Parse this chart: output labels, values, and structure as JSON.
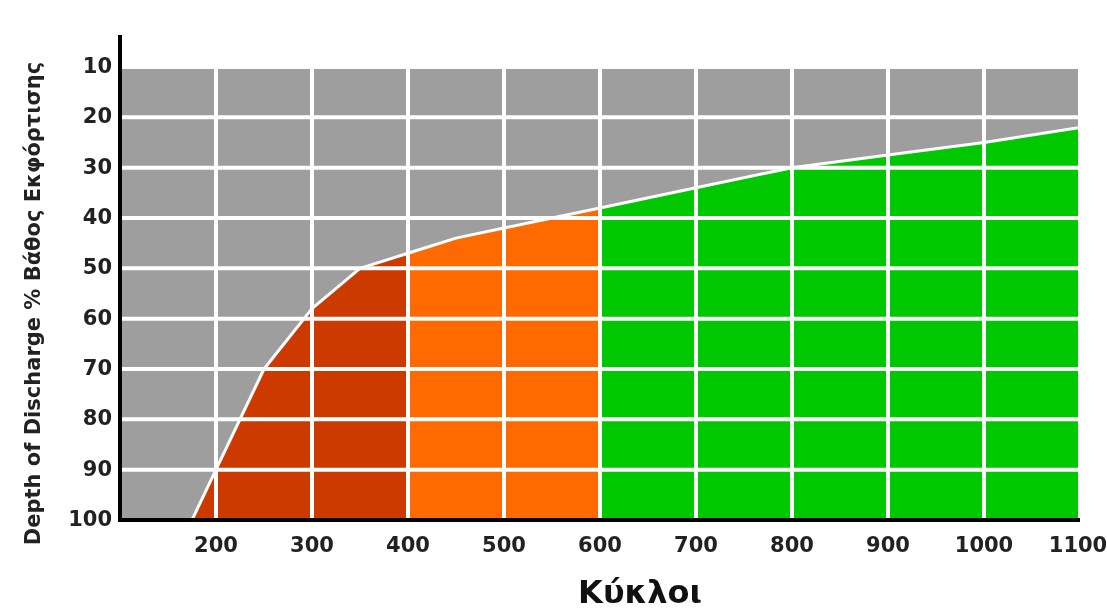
{
  "chart_data": {
    "type": "area",
    "xlabel": "Κύκλοι",
    "ylabel": "Depth of Discharge %  Βάθος Εκφόρτισης",
    "xlim": [
      100,
      1100
    ],
    "xticks": [
      200,
      300,
      400,
      500,
      600,
      700,
      800,
      900,
      1000,
      1100
    ],
    "ylim": [
      100,
      10
    ],
    "yticks": [
      10,
      20,
      30,
      40,
      50,
      60,
      70,
      80,
      90,
      100
    ],
    "grid": true,
    "bands": [
      {
        "axis": "x",
        "from": 175,
        "to": 400,
        "color": "#cc3a00"
      },
      {
        "axis": "x",
        "from": 400,
        "to": 600,
        "color": "#ff6a00"
      },
      {
        "axis": "x",
        "from": 600,
        "to": 1100,
        "color": "#00c800"
      }
    ],
    "series": [
      {
        "color": "#9e9e9e",
        "x": [
          100,
          175,
          200,
          250,
          300,
          350,
          400,
          450,
          500,
          550,
          600,
          700,
          800,
          900,
          1000,
          1100
        ],
        "values": [
          100,
          100,
          90,
          70,
          58,
          50,
          47,
          44,
          42,
          40,
          38,
          34,
          30,
          27.5,
          25,
          22
        ]
      }
    ]
  }
}
